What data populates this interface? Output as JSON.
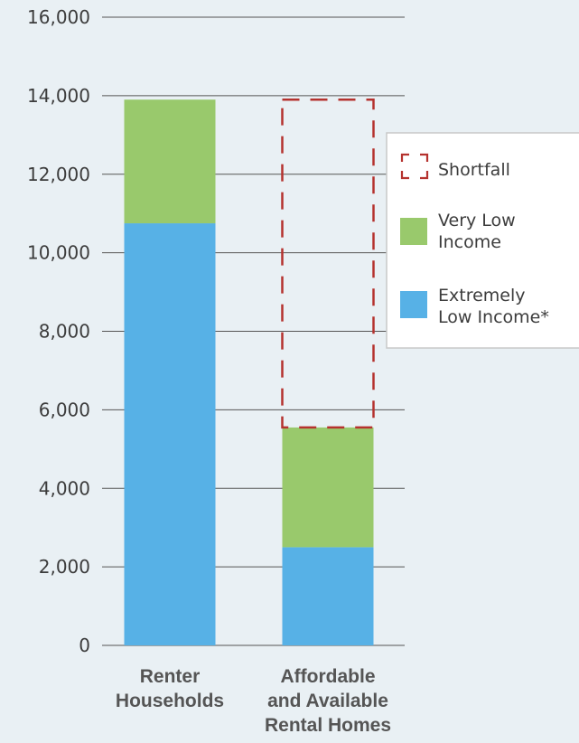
{
  "chart_data": {
    "type": "bar",
    "stacked": true,
    "categories": [
      [
        "Renter",
        "Households"
      ],
      [
        "Affordable",
        "and Available",
        "Rental Homes"
      ]
    ],
    "series": [
      {
        "name": "Extremely Low Income*",
        "label_lines": [
          "Extremely",
          "Low Income*"
        ],
        "color": "#57b1e6",
        "values": [
          10750,
          2500
        ]
      },
      {
        "name": "Very Low Income",
        "label_lines": [
          "Very Low",
          "Income"
        ],
        "color": "#99c96c",
        "values": [
          3150,
          3050
        ]
      }
    ],
    "shortfall": {
      "name": "Shortfall",
      "label_lines": [
        "Shortfall"
      ],
      "color": "#b5322e",
      "category_index": 1,
      "from": 5550,
      "to": 13900
    },
    "ylim": [
      0,
      16000
    ],
    "yticks": [
      0,
      2000,
      4000,
      6000,
      8000,
      10000,
      12000,
      14000,
      16000
    ],
    "ytick_labels": [
      "0",
      "2,000",
      "4,000",
      "6,000",
      "8,000",
      "10,000",
      "12,000",
      "14,000",
      "16,000"
    ],
    "grid": true,
    "legend_position": "right",
    "title": "",
    "xlabel": "",
    "ylabel": ""
  }
}
